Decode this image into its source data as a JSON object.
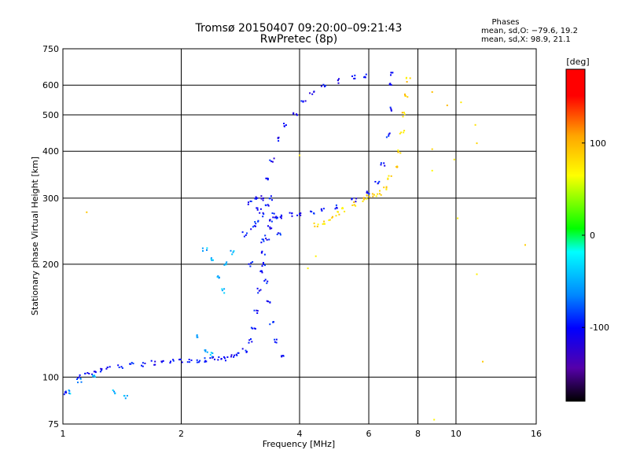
{
  "chart_data": {
    "type": "scatter",
    "title": "Tromsø 20150407 09:20:00–09:21:43",
    "subtitle": "RwPretec (8p)",
    "xlabel": "Frequency [MHz]",
    "ylabel": "Stationary phase Virtual Height [km]",
    "x_scale": "log",
    "y_scale": "log",
    "xlim": [
      1,
      16
    ],
    "ylim": [
      75,
      750
    ],
    "x_ticks": [
      1,
      2,
      4,
      6,
      8,
      10,
      16
    ],
    "y_ticks": [
      75,
      100,
      200,
      300,
      400,
      500,
      600,
      750
    ],
    "grid": true,
    "stats": {
      "title": "Phases",
      "line_o": "mean, sd,O: −79.6, 19.2",
      "line_x": "mean, sd,X:  98.9, 21.1"
    },
    "colorbar": {
      "label": "[deg]",
      "range": [
        -180,
        180
      ],
      "ticks": [
        100,
        0,
        -100
      ],
      "colors": [
        "#000000",
        "#5500aa",
        "#0000ff",
        "#0088ff",
        "#00ffff",
        "#00ff00",
        "#ffff00",
        "#ffa500",
        "#ff0000"
      ]
    },
    "series": [
      {
        "id": "o-mode-low",
        "mean_phase": -88,
        "points": [
          [
            1.02,
            91
          ],
          [
            1.1,
            100
          ],
          [
            1.15,
            102
          ],
          [
            1.2,
            103
          ],
          [
            1.25,
            104
          ],
          [
            1.3,
            106
          ],
          [
            1.4,
            107
          ],
          [
            1.5,
            108
          ],
          [
            1.6,
            108
          ],
          [
            1.7,
            109
          ],
          [
            1.8,
            109
          ],
          [
            1.9,
            110
          ],
          [
            2.0,
            110
          ],
          [
            2.1,
            111
          ],
          [
            2.2,
            111
          ],
          [
            2.3,
            111
          ],
          [
            2.4,
            112
          ],
          [
            2.5,
            112
          ],
          [
            2.6,
            112
          ],
          [
            2.7,
            113
          ],
          [
            2.8,
            115
          ],
          [
            2.9,
            118
          ],
          [
            3.0,
            125
          ],
          [
            3.05,
            135
          ],
          [
            3.1,
            150
          ],
          [
            3.15,
            170
          ],
          [
            3.2,
            190
          ],
          [
            3.25,
            215
          ],
          [
            3.3,
            235
          ],
          [
            3.35,
            250
          ],
          [
            3.4,
            260
          ],
          [
            3.5,
            265
          ],
          [
            3.6,
            268
          ],
          [
            3.8,
            270
          ],
          [
            4.0,
            272
          ],
          [
            4.3,
            275
          ],
          [
            4.6,
            280
          ],
          [
            5.0,
            285
          ],
          [
            5.5,
            295
          ],
          [
            6.0,
            310
          ],
          [
            6.3,
            330
          ],
          [
            6.5,
            370
          ],
          [
            6.7,
            440
          ],
          [
            6.8,
            520
          ],
          [
            6.85,
            600
          ],
          [
            6.9,
            640
          ]
        ]
      },
      {
        "id": "o-mode-upper",
        "mean_phase": -95,
        "points": [
          [
            3.2,
            300
          ],
          [
            3.3,
            340
          ],
          [
            3.4,
            380
          ],
          [
            3.5,
            430
          ],
          [
            3.7,
            470
          ],
          [
            3.9,
            500
          ],
          [
            4.1,
            540
          ],
          [
            4.3,
            570
          ],
          [
            4.6,
            600
          ],
          [
            5.0,
            615
          ],
          [
            5.5,
            630
          ],
          [
            5.9,
            635
          ]
        ]
      },
      {
        "id": "o-mode-scatter",
        "mean_phase": -85,
        "points": [
          [
            3.0,
            200
          ],
          [
            3.05,
            250
          ],
          [
            3.1,
            300
          ],
          [
            3.15,
            280
          ],
          [
            3.2,
            230
          ],
          [
            3.25,
            200
          ],
          [
            3.3,
            180
          ],
          [
            3.35,
            160
          ],
          [
            3.4,
            140
          ],
          [
            3.5,
            125
          ],
          [
            3.6,
            115
          ],
          [
            2.9,
            240
          ],
          [
            3.0,
            290
          ],
          [
            3.1,
            260
          ],
          [
            3.2,
            270
          ],
          [
            3.3,
            290
          ],
          [
            3.4,
            300
          ],
          [
            3.45,
            270
          ],
          [
            3.55,
            240
          ]
        ]
      },
      {
        "id": "x-mode",
        "mean_phase": 110,
        "points": [
          [
            4.4,
            255
          ],
          [
            4.6,
            258
          ],
          [
            4.8,
            265
          ],
          [
            5.0,
            272
          ],
          [
            5.2,
            280
          ],
          [
            5.5,
            290
          ],
          [
            5.8,
            298
          ],
          [
            6.0,
            302
          ],
          [
            6.2,
            305
          ],
          [
            6.4,
            310
          ],
          [
            6.6,
            320
          ],
          [
            6.8,
            340
          ],
          [
            7.0,
            365
          ],
          [
            7.2,
            400
          ],
          [
            7.3,
            450
          ],
          [
            7.4,
            500
          ],
          [
            7.5,
            560
          ],
          [
            7.55,
            620
          ]
        ]
      },
      {
        "id": "low-cyan",
        "mean_phase": -30,
        "points": [
          [
            1.03,
            91
          ],
          [
            1.1,
            98
          ],
          [
            1.2,
            100
          ],
          [
            1.35,
            91
          ],
          [
            1.45,
            89
          ],
          [
            2.3,
            220
          ],
          [
            2.4,
            205
          ],
          [
            2.5,
            185
          ],
          [
            2.55,
            170
          ],
          [
            2.6,
            200
          ],
          [
            2.7,
            215
          ],
          [
            2.2,
            128
          ],
          [
            2.3,
            118
          ],
          [
            2.4,
            115
          ]
        ]
      },
      {
        "id": "outliers",
        "mean_phase": 110,
        "points": [
          [
            1.15,
            275
          ],
          [
            8.7,
            575
          ],
          [
            9.5,
            530
          ],
          [
            10.3,
            540
          ],
          [
            11.2,
            470
          ],
          [
            11.3,
            420
          ],
          [
            15.0,
            225
          ],
          [
            11.3,
            188
          ],
          [
            8.7,
            405
          ],
          [
            8.7,
            355
          ],
          [
            11.7,
            110
          ],
          [
            4.0,
            390
          ],
          [
            4.4,
            210
          ],
          [
            4.2,
            195
          ],
          [
            9.9,
            380
          ],
          [
            10.1,
            265
          ],
          [
            8.8,
            77
          ]
        ]
      }
    ]
  }
}
